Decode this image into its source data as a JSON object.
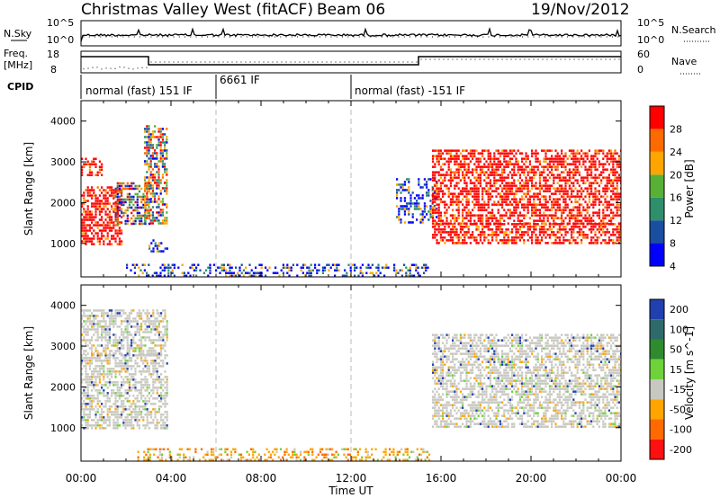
{
  "header": {
    "title": "Christmas Valley West (fitACF)",
    "beam": "Beam 06",
    "date": "19/Nov/2012"
  },
  "nsky_panel": {
    "left_label": "N.Sky",
    "right_label": "N.Search",
    "left_ticks": [
      "10^5",
      "10^0"
    ],
    "right_ticks": [
      "10^5",
      "10^0"
    ]
  },
  "freq_panel": {
    "left_label_1": "Freq.",
    "left_label_2": "[MHz]",
    "right_label": "Nave",
    "left_ticks": [
      "18",
      "8"
    ],
    "right_ticks": [
      "60",
      "0"
    ]
  },
  "cpid": {
    "label": "CPID",
    "segments": [
      {
        "text": "normal (fast) 151 IF",
        "start_hour": 0
      },
      {
        "text": "6661 IF",
        "start_hour": 6
      },
      {
        "text": "normal (fast) -151 IF",
        "start_hour": 12
      }
    ]
  },
  "chart_data": [
    {
      "type": "heatmap",
      "title": "",
      "xlabel": "Time UT",
      "ylabel": "Slant Range [km]",
      "xlim": [
        0,
        24
      ],
      "ylim": [
        180,
        4500
      ],
      "x_ticks": [
        "00:00",
        "04:00",
        "08:00",
        "12:00",
        "16:00",
        "20:00",
        "00:00"
      ],
      "y_ticks": [
        "1000",
        "2000",
        "3000",
        "4000"
      ],
      "colorbar": {
        "label": "Power [dB]",
        "ticks": [
          "4",
          "8",
          "12",
          "16",
          "20",
          "24",
          "28"
        ],
        "colors": [
          "#0000ff",
          "#1a4fa0",
          "#2f8f6a",
          "#58b036",
          "#ffa500",
          "#ff6a00",
          "#ff0000"
        ]
      },
      "regions": [
        {
          "t": [
            0.0,
            1.8
          ],
          "r": [
            1000,
            2400
          ],
          "level": "high"
        },
        {
          "t": [
            0.0,
            0.9
          ],
          "r": [
            2700,
            3100
          ],
          "level": "high"
        },
        {
          "t": [
            1.5,
            3.0
          ],
          "r": [
            1500,
            2500
          ],
          "level": "mixed"
        },
        {
          "t": [
            2.8,
            3.8
          ],
          "r": [
            1500,
            3900
          ],
          "level": "mixed"
        },
        {
          "t": [
            3.0,
            3.8
          ],
          "r": [
            800,
            1100
          ],
          "level": "low"
        },
        {
          "t": [
            2.0,
            15.5
          ],
          "r": [
            180,
            500
          ],
          "level": "low"
        },
        {
          "t": [
            14.0,
            15.8
          ],
          "r": [
            1500,
            2600
          ],
          "level": "low"
        },
        {
          "t": [
            15.6,
            24.0
          ],
          "r": [
            1000,
            1500
          ],
          "level": "high"
        },
        {
          "t": [
            15.6,
            24.0
          ],
          "r": [
            1500,
            3300
          ],
          "level": "high"
        }
      ]
    },
    {
      "type": "heatmap",
      "title": "",
      "xlabel": "Time UT",
      "ylabel": "Slant Range [km]",
      "xlim": [
        0,
        24
      ],
      "ylim": [
        180,
        4500
      ],
      "x_ticks": [
        "00:00",
        "04:00",
        "08:00",
        "12:00",
        "16:00",
        "20:00",
        "00:00"
      ],
      "y_ticks": [
        "1000",
        "2000",
        "3000",
        "4000"
      ],
      "colorbar": {
        "label": "Velocity [m s^-1]",
        "ticks": [
          "200",
          "100",
          "50",
          "15",
          "-15",
          "-50",
          "-100",
          "-200"
        ],
        "colors": [
          "#2040b0",
          "#2f6a6a",
          "#2e8b2e",
          "#6fd23a",
          "#c8c8c0",
          "#ffa500",
          "#ff6a00",
          "#ff1010"
        ]
      },
      "regions": [
        {
          "t": [
            0.0,
            3.8
          ],
          "r": [
            1000,
            2800
          ],
          "level": "near-zero"
        },
        {
          "t": [
            0.0,
            3.8
          ],
          "r": [
            2800,
            3900
          ],
          "level": "near-zero"
        },
        {
          "t": [
            2.5,
            15.5
          ],
          "r": [
            180,
            500
          ],
          "level": "negative"
        },
        {
          "t": [
            15.6,
            24.0
          ],
          "r": [
            1000,
            3300
          ],
          "level": "near-zero"
        }
      ]
    }
  ]
}
